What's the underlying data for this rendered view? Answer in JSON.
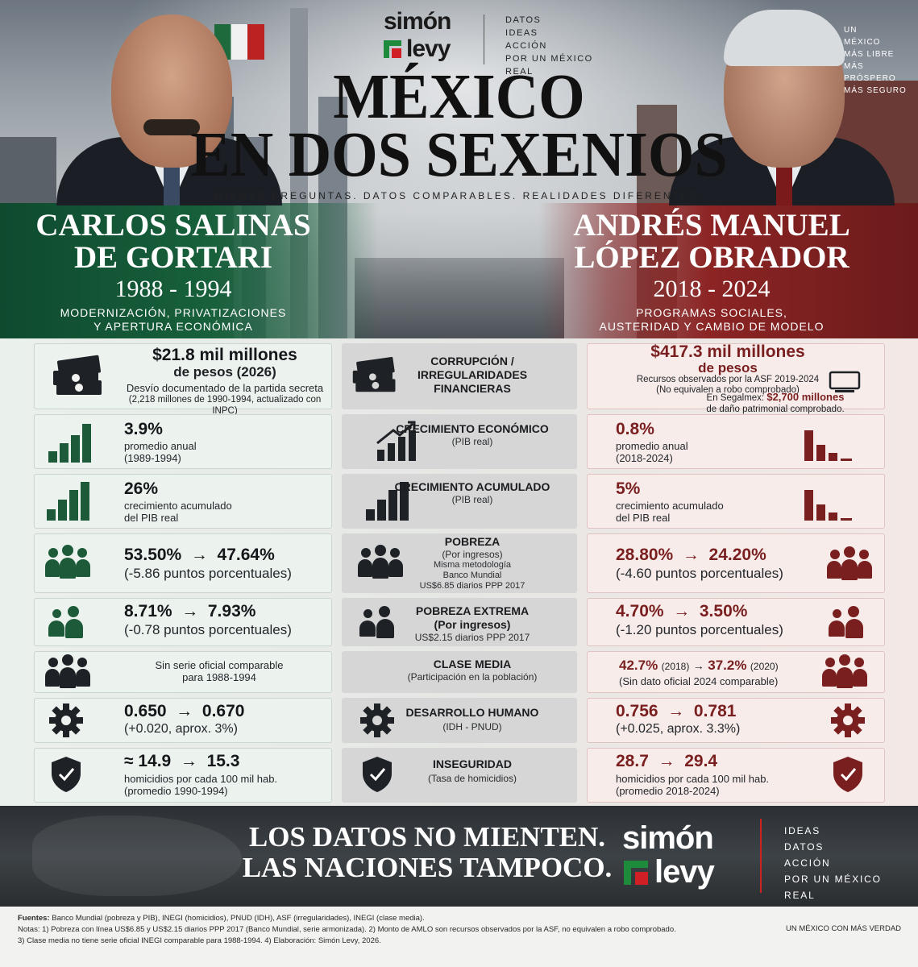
{
  "brand": {
    "logo_line1": "simón",
    "logo_line2": "levy",
    "top_tagline": [
      "DATOS",
      "IDEAS",
      "ACCIÓN",
      "POR UN MÉXICO REAL"
    ],
    "bottom_tagline": [
      "IDEAS",
      "DATOS",
      "ACCIÓN",
      "POR UN MÉXICO REAL"
    ]
  },
  "right_tagline": [
    "UN",
    "MÉXICO",
    "MÁS LIBRE",
    "MÁS PRÓSPERO",
    "MÁS SEGURO"
  ],
  "title": {
    "line1": "MÉXICO",
    "line2": "EN DOS SEXENIOS",
    "subtitle": "MISMAS PREGUNTAS. DATOS COMPARABLES. REALIDADES DIFERENTES."
  },
  "left_president": {
    "name_line1": "CARLOS SALINAS",
    "name_line2": "DE GORTARI",
    "years": "1988 - 1994",
    "desc_line1": "MODERNIZACIÓN, PRIVATIZACIONES",
    "desc_line2": "Y APERTURA ECONÓMICA"
  },
  "right_president": {
    "name_line1": "ANDRÉS MANUEL",
    "name_line2": "LÓPEZ OBRADOR",
    "years": "2018 - 2024",
    "desc_line1": "PROGRAMAS SOCIALES,",
    "desc_line2": "AUSTERIDAD Y CAMBIO DE MODELO"
  },
  "rows": {
    "corruption": {
      "mid_title": "CORRUPCIÓN / IRREGULARIDADES FINANCIERAS",
      "left_value": "$21.8 mil millones",
      "left_value2": "de pesos (2026)",
      "left_sub1": "Desvío documentado de la partida secreta",
      "left_sub2": "(2,218 millones de 1990-1994, actualizado con INPC)",
      "right_value": "$417.3 mil millones",
      "right_value2": "de pesos",
      "right_sub1": "Recursos observados por la ASF 2019-2024",
      "right_sub2": "(No equivalen a robo comprobado)",
      "right_sub3_pre": "En Segalmex:",
      "right_sub3_bold": "$2,700 millones",
      "right_sub4": "de daño patrimonial comprobado."
    },
    "growth": {
      "mid_title": "CRECIMIENTO ECONÓMICO",
      "mid_sub": "(PIB real)",
      "left_value": "3.9%",
      "left_sub1": "promedio anual",
      "left_sub2": "(1989-1994)",
      "right_value": "0.8%",
      "right_sub1": "promedio anual",
      "right_sub2": "(2018-2024)"
    },
    "growth_acc": {
      "mid_title": "CRECIMIENTO ACUMULADO",
      "mid_sub": "(PIB real)",
      "left_value": "26%",
      "left_sub1": "crecimiento acumulado",
      "left_sub2": "del PIB real",
      "right_value": "5%",
      "right_sub1": "crecimiento acumulado",
      "right_sub2": "del PIB real"
    },
    "poverty": {
      "mid_title": "POBREZA",
      "mid_sub1": "(Por ingresos)",
      "mid_sub2": "Misma metodología",
      "mid_sub3": "Banco Mundial",
      "mid_sub4": "US$6.85 diarios PPP 2017",
      "left_value": "53.50%  →  47.64%",
      "left_sub": "(-5.86 puntos porcentuales)",
      "right_value": "28.80%  →  24.20%",
      "right_sub": "(-4.60 puntos porcentuales)"
    },
    "extreme": {
      "mid_title": "POBREZA EXTREMA",
      "mid_title2": "(Por ingresos)",
      "mid_sub": "US$2.15 diarios PPP 2017",
      "left_value": "8.71%  →  7.93%",
      "left_sub": "(-0.78 puntos porcentuales)",
      "right_value": "4.70%  →  3.50%",
      "right_sub": "(-1.20 puntos porcentuales)"
    },
    "middle": {
      "mid_title": "CLASE MEDIA",
      "mid_sub": "(Participación en la población)",
      "left_sub1": "Sin serie oficial comparable",
      "left_sub2": "para 1988-1994",
      "right_v1": "42.7%",
      "right_y1": "(2018)",
      "right_arrow": "→",
      "right_v2": "37.2%",
      "right_y2": "(2020)",
      "right_sub": "(Sin dato oficial 2024 comparable)"
    },
    "idh": {
      "mid_title": "DESARROLLO HUMANO",
      "mid_sub": "(IDH - PNUD)",
      "left_value": "0.650  →  0.670",
      "left_sub": "(+0.020, aprox. 3%)",
      "right_value": "0.756  →  0.781",
      "right_sub": "(+0.025, aprox. 3.3%)"
    },
    "security": {
      "mid_title": "INSEGURIDAD",
      "mid_sub": "(Tasa de homicidios)",
      "left_value": "≈ 14.9  →  15.3",
      "left_sub1": "homicidios por cada 100 mil hab.",
      "left_sub2": "(promedio 1990-1994)",
      "right_value": "28.7  →  29.4",
      "right_sub1": "homicidios por cada 100 mil hab.",
      "right_sub2": "(promedio 2018-2024)"
    }
  },
  "slogan": {
    "line1": "LOS DATOS NO MIENTEN.",
    "line2": "LAS NACIONES TAMPOCO."
  },
  "footer": {
    "sources_label": "Fuentes:",
    "sources_text": "Banco Mundial (pobreza y PIB), INEGI (homicidios), PNUD (IDH), ASF (irregularidades), INEGI (clase media).",
    "notes_line1": "Notas: 1) Pobreza con línea US$6.85 y US$2.15 diarios PPP 2017 (Banco Mundial, serie armonizada). 2) Monto de AMLO son recursos observados por la ASF, no equivalen a robo comprobado.",
    "notes_line2": "3) Clase media no tiene serie oficial INEGI comparable para 1988-1994. 4) Elaboración: Simón Levy, 2026.",
    "tagline": "UN MÉXICO CON MÁS VERDAD"
  },
  "colors": {
    "green": "#17603b",
    "red": "#8c2424",
    "icon_green": "#1c5a3a",
    "icon_red": "#7a1f1f",
    "logo_green": "#1e8a3c",
    "logo_red": "#d02026"
  },
  "icons": [
    "money-stack-icon",
    "bar-chart-icon",
    "growth-chart-icon",
    "people-group-icon",
    "people-pair-icon",
    "gear-icon",
    "shield-check-icon",
    "monitor-icon"
  ]
}
